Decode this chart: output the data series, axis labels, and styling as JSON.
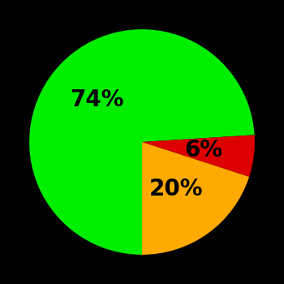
{
  "slices": [
    74,
    6,
    20
  ],
  "colors": [
    "#00ee00",
    "#dd0000",
    "#ffaa00"
  ],
  "labels": [
    "74%",
    "6%",
    "20%"
  ],
  "background_color": "#000000",
  "startangle": 270,
  "figsize": [
    3.5,
    3.5
  ],
  "dpi": 100,
  "label_fontsize": 20,
  "label_fontweight": "bold",
  "label_radii": [
    0.55,
    0.55,
    0.52
  ]
}
